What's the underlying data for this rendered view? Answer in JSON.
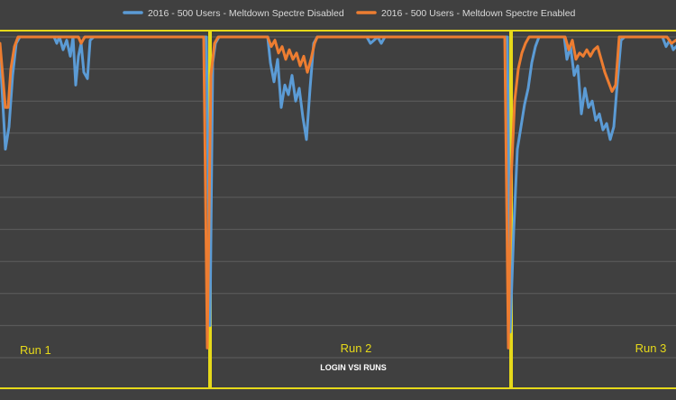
{
  "chart_data": {
    "type": "line",
    "title": "",
    "xlabel": "LOGIN VSI RUNS",
    "ylabel": "",
    "ylim": [
      0,
      100
    ],
    "grid": true,
    "legend_position": "top-center",
    "runs": [
      {
        "label": "Run 1"
      },
      {
        "label": "Run 2"
      },
      {
        "label": "Run 3"
      }
    ],
    "series": [
      {
        "name": "2016 - 500 Users - Meltdown Spectre Disabled",
        "color": "#5b9bd5",
        "points": [
          [
            0,
            95
          ],
          [
            3,
            80
          ],
          [
            6,
            65
          ],
          [
            10,
            72
          ],
          [
            14,
            88
          ],
          [
            18,
            98
          ],
          [
            22,
            100
          ],
          [
            60,
            100
          ],
          [
            63,
            98
          ],
          [
            66,
            100
          ],
          [
            70,
            96
          ],
          [
            74,
            99
          ],
          [
            78,
            94
          ],
          [
            81,
            100
          ],
          [
            84,
            85
          ],
          [
            87,
            94
          ],
          [
            90,
            98
          ],
          [
            93,
            89
          ],
          [
            97,
            87
          ],
          [
            100,
            99
          ],
          [
            104,
            100
          ],
          [
            229,
            100
          ],
          [
            233,
            10
          ],
          [
            236,
            92
          ],
          [
            239,
            98
          ],
          [
            243,
            100
          ],
          [
            297,
            100
          ],
          [
            300,
            92
          ],
          [
            304,
            86
          ],
          [
            308,
            93
          ],
          [
            312,
            78
          ],
          [
            316,
            85
          ],
          [
            320,
            82
          ],
          [
            324,
            88
          ],
          [
            328,
            80
          ],
          [
            332,
            84
          ],
          [
            336,
            75
          ],
          [
            340,
            68
          ],
          [
            344,
            84
          ],
          [
            348,
            98
          ],
          [
            352,
            100
          ],
          [
            407,
            100
          ],
          [
            411,
            98
          ],
          [
            415,
            99
          ],
          [
            419,
            100
          ],
          [
            423,
            98
          ],
          [
            427,
            100
          ],
          [
            563,
            100
          ],
          [
            566,
            8
          ],
          [
            570,
            40
          ],
          [
            574,
            65
          ],
          [
            578,
            72
          ],
          [
            582,
            79
          ],
          [
            586,
            84
          ],
          [
            590,
            92
          ],
          [
            594,
            97
          ],
          [
            598,
            100
          ],
          [
            626,
            100
          ],
          [
            629,
            93
          ],
          [
            633,
            97
          ],
          [
            637,
            88
          ],
          [
            641,
            91
          ],
          [
            645,
            76
          ],
          [
            649,
            84
          ],
          [
            653,
            78
          ],
          [
            657,
            80
          ],
          [
            661,
            74
          ],
          [
            665,
            76
          ],
          [
            669,
            71
          ],
          [
            673,
            73
          ],
          [
            677,
            68
          ],
          [
            681,
            72
          ],
          [
            685,
            86
          ],
          [
            689,
            99
          ],
          [
            693,
            100
          ],
          [
            735,
            100
          ],
          [
            739,
            97
          ],
          [
            743,
            99
          ],
          [
            747,
            96
          ],
          [
            750,
            97
          ]
        ]
      },
      {
        "name": "2016 - 500 Users - Meltdown Spectre Enabled",
        "color": "#ed7d31",
        "points": [
          [
            0,
            98
          ],
          [
            3,
            88
          ],
          [
            6,
            78
          ],
          [
            9,
            78
          ],
          [
            12,
            90
          ],
          [
            16,
            97
          ],
          [
            20,
            100
          ],
          [
            87,
            100
          ],
          [
            90,
            98
          ],
          [
            94,
            100
          ],
          [
            226,
            100
          ],
          [
            230,
            3
          ],
          [
            234,
            88
          ],
          [
            238,
            98
          ],
          [
            242,
            100
          ],
          [
            297,
            100
          ],
          [
            301,
            97
          ],
          [
            305,
            99
          ],
          [
            309,
            95
          ],
          [
            313,
            97
          ],
          [
            317,
            93
          ],
          [
            321,
            96
          ],
          [
            325,
            93
          ],
          [
            329,
            95
          ],
          [
            333,
            91
          ],
          [
            337,
            94
          ],
          [
            341,
            89
          ],
          [
            345,
            93
          ],
          [
            349,
            98
          ],
          [
            352,
            100
          ],
          [
            560,
            100
          ],
          [
            564,
            3
          ],
          [
            567,
            55
          ],
          [
            571,
            80
          ],
          [
            575,
            90
          ],
          [
            579,
            95
          ],
          [
            583,
            98
          ],
          [
            587,
            100
          ],
          [
            627,
            100
          ],
          [
            631,
            96
          ],
          [
            635,
            99
          ],
          [
            639,
            93
          ],
          [
            643,
            95
          ],
          [
            647,
            94
          ],
          [
            651,
            96
          ],
          [
            655,
            94
          ],
          [
            659,
            96
          ],
          [
            663,
            97
          ],
          [
            667,
            93
          ],
          [
            671,
            89
          ],
          [
            675,
            86
          ],
          [
            679,
            83
          ],
          [
            683,
            85
          ],
          [
            687,
            100
          ],
          [
            740,
            100
          ],
          [
            745,
            98
          ],
          [
            750,
            99
          ]
        ]
      }
    ]
  }
}
